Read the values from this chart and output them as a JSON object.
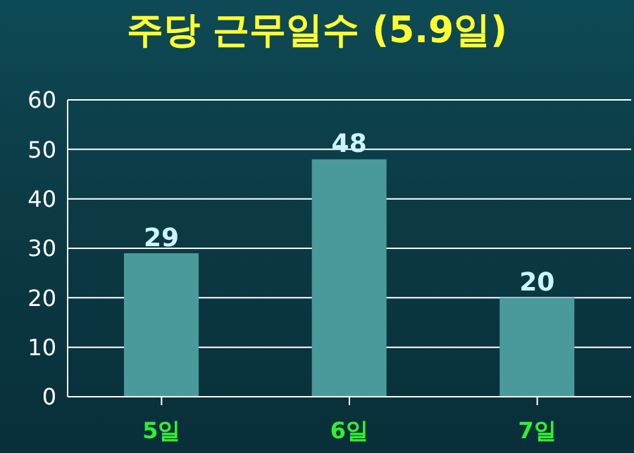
{
  "chart_data": {
    "type": "bar",
    "title": "주당 근무일수 (5.9일)",
    "categories": [
      "5일",
      "6일",
      "7일"
    ],
    "values": [
      29,
      48,
      20
    ],
    "color": "#4a9a9c",
    "ylim": [
      0,
      60
    ],
    "yticks": [
      0,
      10,
      20,
      30,
      40,
      50,
      60
    ],
    "grid": "y",
    "data_labels": true
  }
}
